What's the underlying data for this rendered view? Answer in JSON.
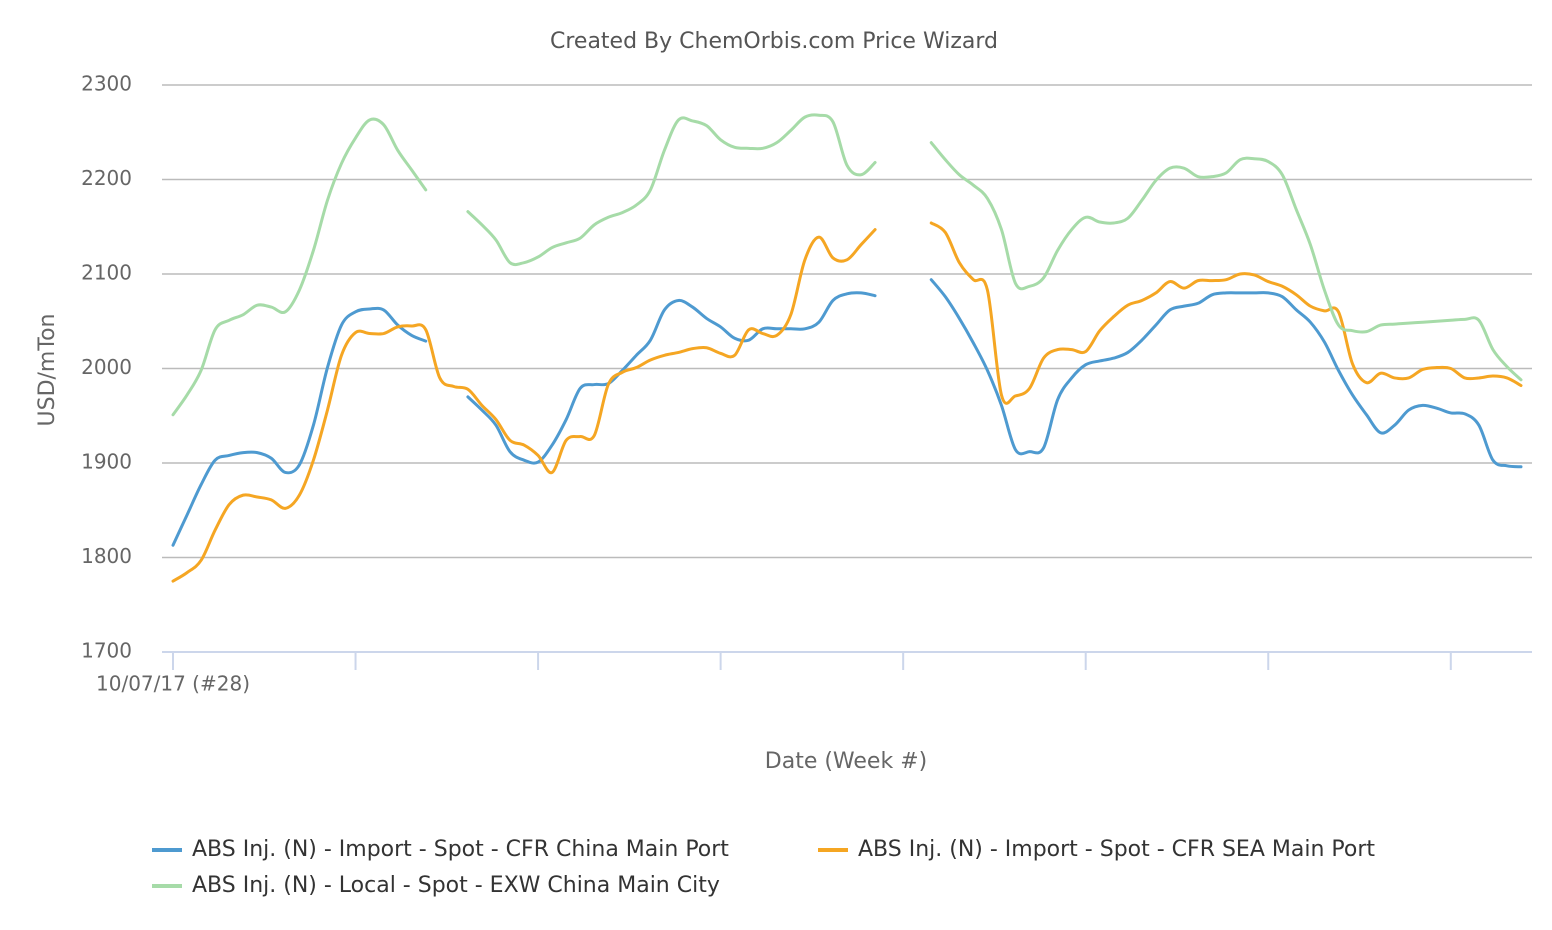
{
  "chart_data": {
    "type": "line",
    "title": "Created By ChemOrbis.com Price Wizard",
    "xlabel": "Date (Week #)",
    "ylabel": "USD/mTon",
    "categories": [
      "10/07/17 (#28)",
      null,
      null,
      null,
      null,
      null,
      null,
      null,
      null,
      null,
      null,
      null,
      null,
      null,
      null,
      null,
      null,
      null,
      null,
      null,
      null,
      null,
      null,
      null,
      null,
      null,
      null,
      null,
      null,
      null,
      null,
      null,
      null,
      null,
      null,
      null,
      null,
      null,
      null,
      null,
      null,
      null,
      null,
      null,
      null,
      null,
      null,
      null,
      null,
      null,
      null,
      null,
      null,
      null,
      null,
      null,
      null,
      null,
      null,
      null,
      null,
      null,
      null,
      null,
      null,
      null,
      null,
      null,
      null,
      null,
      null,
      null,
      null,
      null,
      null,
      null,
      null,
      null,
      null,
      null,
      null,
      null,
      null,
      null,
      null,
      null,
      null,
      null,
      null,
      null,
      null,
      null,
      null,
      null,
      null,
      null,
      null
    ],
    "ylim": [
      1700,
      2300
    ],
    "yticks": [
      1700,
      1800,
      1900,
      2000,
      2100,
      2200,
      2300
    ],
    "grid": true,
    "legend": "bottom",
    "series": [
      {
        "name": "ABS Inj. (N) - Import - Spot - CFR China Main Port",
        "color": "#4e9ad0",
        "values": [
          1813,
          1845,
          1877,
          1903,
          1908,
          1911,
          1911,
          1905,
          1890,
          1898,
          1940,
          2001,
          2046,
          2060,
          2063,
          2062,
          2046,
          2035,
          2029,
          null,
          null,
          1970,
          1956,
          1940,
          1912,
          1903,
          1901,
          1919,
          1946,
          1979,
          1983,
          1984,
          1998,
          2014,
          2030,
          2062,
          2072,
          2065,
          2053,
          2044,
          2032,
          2030,
          2042,
          2042,
          2042,
          2042,
          2049,
          2072,
          2079,
          2080,
          2077,
          null,
          null,
          null,
          2094,
          2076,
          2053,
          2027,
          1998,
          1961,
          1914,
          1912,
          1916,
          1967,
          1990,
          2004,
          2008,
          2011,
          2017,
          2030,
          2046,
          2062,
          2066,
          2069,
          2078,
          2080,
          2080,
          2080,
          2080,
          2076,
          2062,
          2049,
          2028,
          1998,
          1972,
          1951,
          1932,
          1940,
          1956,
          1961,
          1958,
          1953,
          1952,
          1940,
          1903,
          1897,
          1896
        ]
      },
      {
        "name": "ABS Inj. (N) - Import - Spot - CFR SEA Main Port",
        "color": "#f5a623",
        "values": [
          1775,
          1784,
          1797,
          1829,
          1856,
          1866,
          1864,
          1861,
          1852,
          1866,
          1903,
          1956,
          2014,
          2038,
          2037,
          2037,
          2044,
          2045,
          2041,
          1990,
          1981,
          1978,
          1961,
          1946,
          1924,
          1919,
          1908,
          1890,
          1924,
          1928,
          1929,
          1983,
          1996,
          2001,
          2009,
          2014,
          2017,
          2021,
          2022,
          2016,
          2014,
          2041,
          2037,
          2035,
          2057,
          2115,
          2139,
          2117,
          2115,
          2131,
          2147,
          null,
          null,
          null,
          2154,
          2144,
          2112,
          2094,
          2083,
          1972,
          1971,
          1979,
          2011,
          2020,
          2020,
          2018,
          2040,
          2055,
          2067,
          2072,
          2080,
          2092,
          2085,
          2093,
          2093,
          2094,
          2100,
          2099,
          2092,
          2087,
          2078,
          2066,
          2061,
          2060,
          2005,
          1985,
          1995,
          1990,
          1990,
          1999,
          2001,
          2000,
          1990,
          1990,
          1992,
          1990,
          1982
        ]
      },
      {
        "name": "ABS Inj. (N) - Local - Spot - EXW China Main City",
        "color": "#a6dba8",
        "values": [
          1951,
          1972,
          1998,
          2041,
          2051,
          2057,
          2067,
          2065,
          2060,
          2083,
          2125,
          2178,
          2217,
          2244,
          2263,
          2258,
          2231,
          2210,
          2189,
          null,
          null,
          2166,
          2152,
          2136,
          2112,
          2112,
          2118,
          2128,
          2133,
          2138,
          2152,
          2160,
          2165,
          2173,
          2189,
          2231,
          2263,
          2262,
          2257,
          2242,
          2234,
          2233,
          2233,
          2239,
          2252,
          2266,
          2268,
          2261,
          2215,
          2205,
          2218,
          null,
          null,
          null,
          2239,
          2221,
          2205,
          2194,
          2180,
          2147,
          2090,
          2087,
          2096,
          2125,
          2147,
          2160,
          2155,
          2154,
          2159,
          2178,
          2199,
          2212,
          2212,
          2203,
          2203,
          2207,
          2221,
          2222,
          2219,
          2205,
          2168,
          2131,
          2083,
          2046,
          2040,
          2039,
          2046,
          2047,
          2048,
          2049,
          2050,
          2051,
          2052,
          2051,
          2020,
          2002,
          1988
        ]
      }
    ]
  }
}
